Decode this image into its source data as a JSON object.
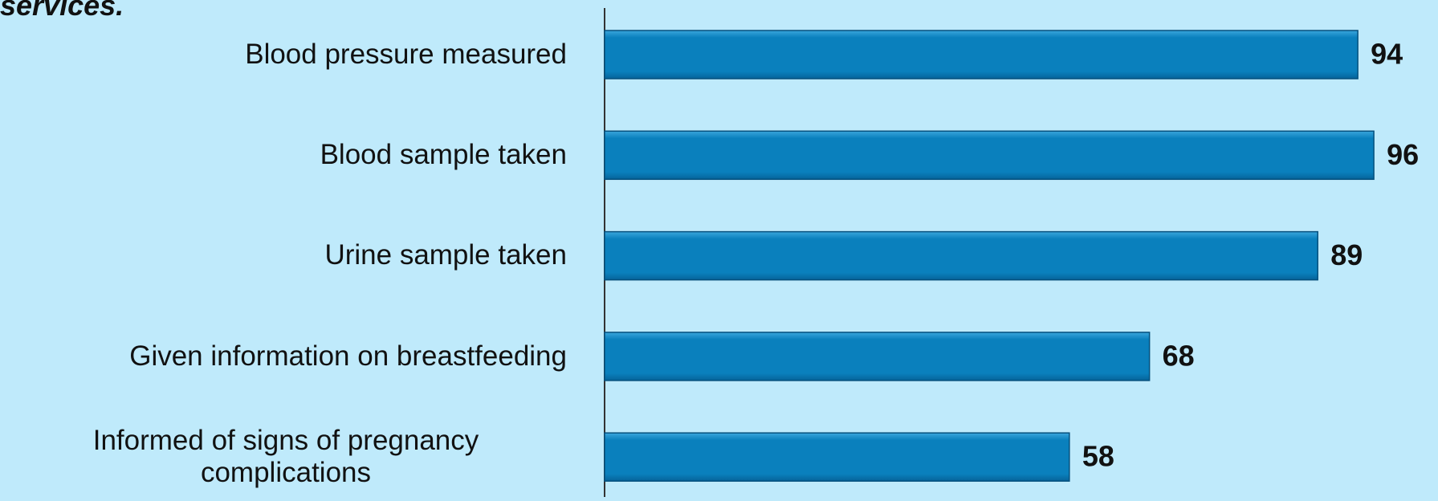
{
  "chart_data": {
    "type": "bar",
    "orientation": "horizontal",
    "title": "services.",
    "categories": [
      "Blood pressure measured",
      "Blood sample taken",
      "Urine sample taken",
      "Given information on breastfeeding",
      "Informed of signs of pregnancy complications"
    ],
    "values": [
      94,
      96,
      89,
      68,
      58
    ],
    "color": "#0a80bd",
    "xlim": [
      0,
      100
    ]
  }
}
